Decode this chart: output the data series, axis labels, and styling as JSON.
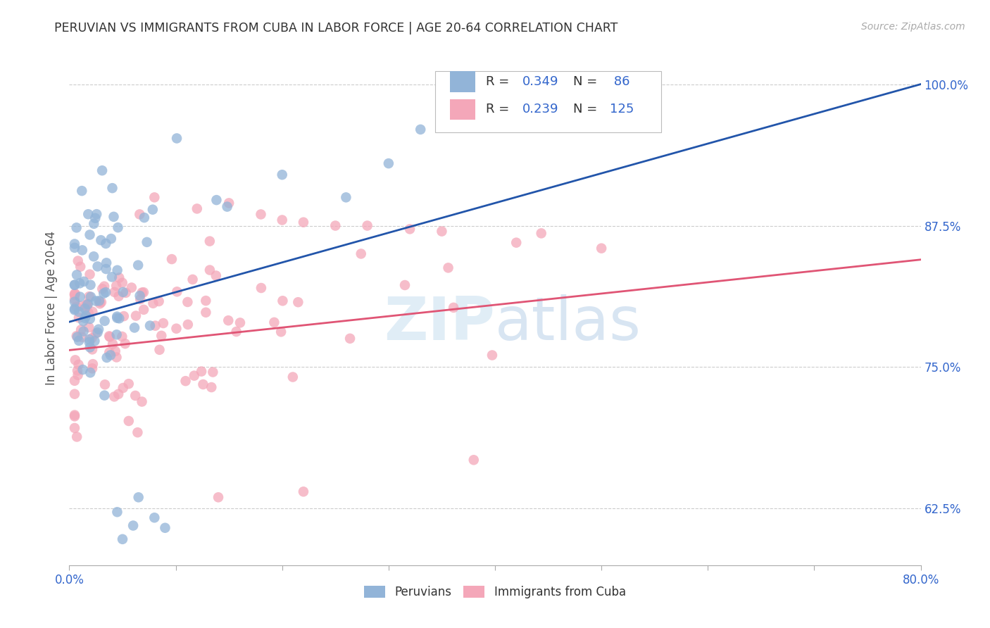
{
  "title": "PERUVIAN VS IMMIGRANTS FROM CUBA IN LABOR FORCE | AGE 20-64 CORRELATION CHART",
  "source": "Source: ZipAtlas.com",
  "ylabel": "In Labor Force | Age 20-64",
  "xmin": 0.0,
  "xmax": 0.8,
  "ymin": 0.575,
  "ymax": 1.03,
  "blue_R": "0.349",
  "blue_N": "86",
  "pink_R": "0.239",
  "pink_N": "125",
  "blue_color": "#92B4D8",
  "pink_color": "#F4A7B9",
  "blue_line_color": "#2255AA",
  "pink_line_color": "#E05575",
  "background_color": "#FFFFFF",
  "ytick_vals": [
    0.625,
    0.75,
    0.875,
    1.0
  ],
  "ytick_labels": [
    "62.5%",
    "75.0%",
    "87.5%",
    "100.0%"
  ],
  "watermark": "ZIPatlas",
  "legend_label_blue": "Peruvians",
  "legend_label_pink": "Immigrants from Cuba"
}
